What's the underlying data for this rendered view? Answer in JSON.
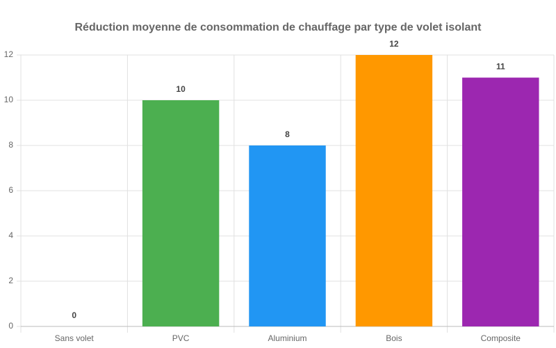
{
  "chart_data": {
    "type": "bar",
    "title": "Réduction moyenne de consommation de chauffage par type de volet isolant",
    "categories": [
      "Sans volet",
      "PVC",
      "Aluminium",
      "Bois",
      "Composite"
    ],
    "values": [
      0,
      10,
      8,
      12,
      11
    ],
    "colors": [
      "#9e9e9e",
      "#4caf50",
      "#2196f3",
      "#ff9800",
      "#9c27b0"
    ],
    "ylim": [
      0,
      12
    ],
    "yticks": [
      0,
      2,
      4,
      6,
      8,
      10,
      12
    ],
    "grid": true
  }
}
